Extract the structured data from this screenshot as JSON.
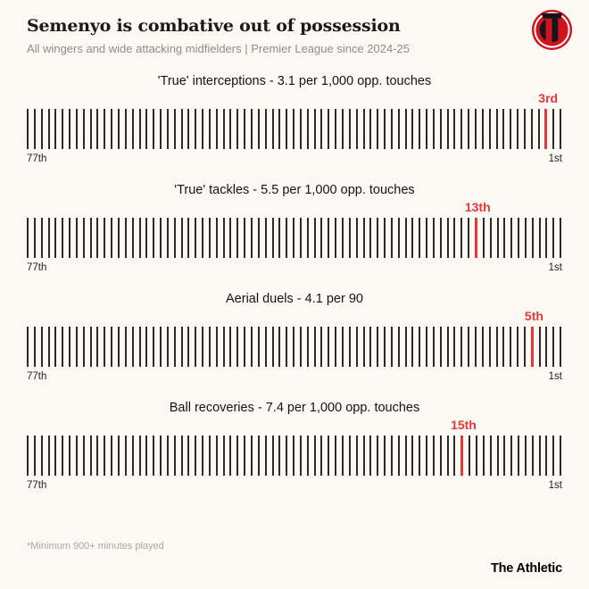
{
  "page": {
    "title": "Semenyo is combative out of possession",
    "subtitle": "All wingers and wide attacking midfielders | Premier League since 2024-25",
    "footnote": "*Minimum 900+ minutes played",
    "brand": "The Athletic",
    "colors": {
      "background": "#fbf9f2",
      "accent": "#e2383d",
      "tick": "#2b2b2b",
      "crest_red": "#cf1420",
      "crest_black": "#16161a"
    }
  },
  "chart_data": [
    {
      "type": "strip-rank",
      "title": "'True' interceptions - 3.1 per 1,000 opp. touches",
      "rank": 3,
      "rank_label": "3rd",
      "total_players": 77,
      "left_label": "77th",
      "right_label": "1st",
      "direction": "worst on left, best (1st) on right",
      "highlight_color": "#e2383d"
    },
    {
      "type": "strip-rank",
      "title": "'True' tackles - 5.5 per 1,000 opp. touches",
      "rank": 13,
      "rank_label": "13th",
      "total_players": 77,
      "left_label": "77th",
      "right_label": "1st",
      "direction": "worst on left, best (1st) on right",
      "highlight_color": "#e2383d"
    },
    {
      "type": "strip-rank",
      "title": "Aerial duels - 4.1 per 90",
      "rank": 5,
      "rank_label": "5th",
      "total_players": 77,
      "left_label": "77th",
      "right_label": "1st",
      "direction": "worst on left, best (1st) on right",
      "highlight_color": "#e2383d"
    },
    {
      "type": "strip-rank",
      "title": "Ball recoveries - 7.4 per 1,000 opp. touches",
      "rank": 15,
      "rank_label": "15th",
      "total_players": 77,
      "left_label": "77th",
      "right_label": "1st",
      "direction": "worst on left, best (1st) on right",
      "highlight_color": "#e2383d"
    }
  ]
}
